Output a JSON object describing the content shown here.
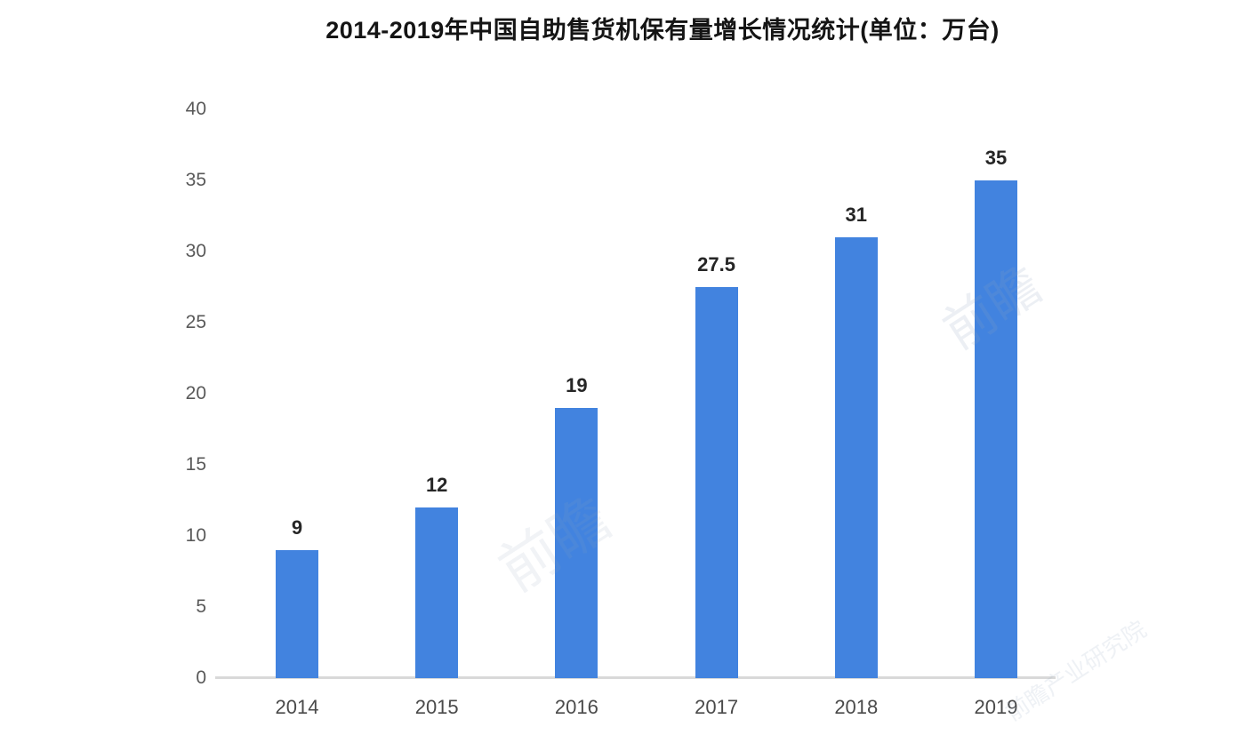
{
  "title": "2014-2019年中国自助售货机保有量增长情况统计(单位：万台)",
  "chart_data": {
    "type": "bar",
    "title": "2014-2019年中国自助售货机保有量增长情况统计(单位：万台)",
    "categories": [
      "2014",
      "2015",
      "2016",
      "2017",
      "2018",
      "2019"
    ],
    "values": [
      9,
      12,
      19,
      27.5,
      31,
      35
    ],
    "data_labels": [
      "9",
      "12",
      "19",
      "27.5",
      "31",
      "35"
    ],
    "xlabel": "",
    "ylabel": "",
    "ylim": [
      0,
      40
    ],
    "yticks": [
      0,
      5,
      10,
      15,
      20,
      25,
      30,
      35,
      40
    ],
    "grid": false,
    "legend": "none",
    "bar_color": "#4283df"
  },
  "colors": {
    "bar": "#4283df",
    "title_text": "#141414",
    "y_tick_text": "#595959",
    "x_tick_text": "#4a4a4a",
    "data_label_text": "#262626",
    "baseline": "#d9d9d9",
    "watermark": "#8fa3bd"
  },
  "watermarks": [
    {
      "text": "前瞻"
    },
    {
      "text": "前瞻"
    },
    {
      "text": "前瞻产业研究院"
    }
  ]
}
